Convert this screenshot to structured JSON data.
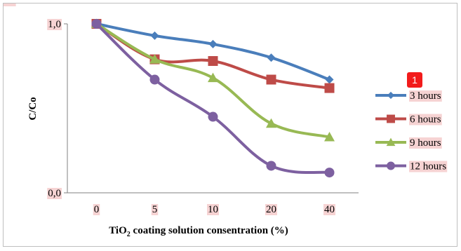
{
  "chart_data": {
    "type": "line",
    "categories": [
      "0",
      "5",
      "10",
      "20",
      "40"
    ],
    "ylabel": "C/Co",
    "xlabel_parts": [
      "TiO",
      "2",
      " coating solution consentration (%)"
    ],
    "y_tick_labels": [
      "1,0",
      "0,0"
    ],
    "ylim": [
      0,
      1
    ],
    "legend_position": "right",
    "series": [
      {
        "name": "3 hours",
        "color": "#4a7ebb",
        "marker": "diamond",
        "values": [
          1.0,
          0.93,
          0.88,
          0.8,
          0.67
        ]
      },
      {
        "name": "6 hours",
        "color": "#be4b48",
        "marker": "square",
        "values": [
          1.0,
          0.79,
          0.78,
          0.67,
          0.62
        ]
      },
      {
        "name": "9 hours",
        "color": "#98b954",
        "marker": "triangle",
        "values": [
          1.0,
          0.79,
          0.68,
          0.41,
          0.33
        ]
      },
      {
        "name": "12 hours",
        "color": "#7d60a0",
        "marker": "circle",
        "values": [
          1.0,
          0.67,
          0.45,
          0.16,
          0.12
        ]
      }
    ]
  },
  "badge": "1"
}
